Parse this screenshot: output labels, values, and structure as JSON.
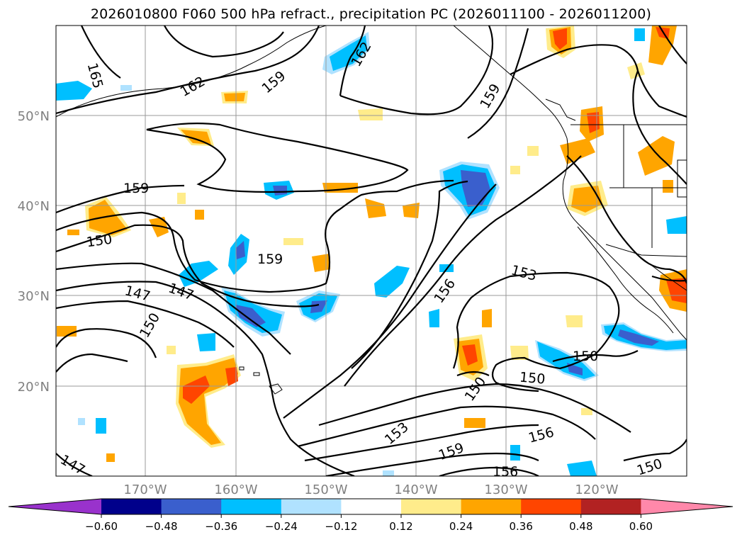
{
  "title": "2026010800 F060 500 hPa refract., precipitation PC (2026011100 - 2026011200)",
  "lat_labels": [
    "50°N",
    "40°N",
    "30°N",
    "20°N"
  ],
  "lon_labels": [
    "170°W",
    "160°W",
    "150°W",
    "140°W",
    "130°W",
    "120°W"
  ],
  "contour_labels": [
    "165",
    "162",
    "159",
    "162",
    "159",
    "159",
    "150",
    "147",
    "147",
    "150",
    "159",
    "153",
    "156",
    "150",
    "150",
    "150",
    "153",
    "159",
    "156",
    "156",
    "150",
    "147"
  ],
  "colorbar": {
    "colors": [
      "#9932CC",
      "#00008B",
      "#3A5FCD",
      "#00BFFF",
      "#B0E2FF",
      "#FFFFFF",
      "#FFEC8B",
      "#FFA500",
      "#FF4500",
      "#B22222",
      "#FF88AA"
    ],
    "tick_labels": [
      "−0.60",
      "−0.48",
      "−0.36",
      "−0.24",
      "−0.12",
      "0.12",
      "0.24",
      "0.36",
      "0.48",
      "0.60"
    ]
  },
  "colors": {
    "grid": "#999999",
    "axis_label": "#808080",
    "contour": "#000000"
  }
}
